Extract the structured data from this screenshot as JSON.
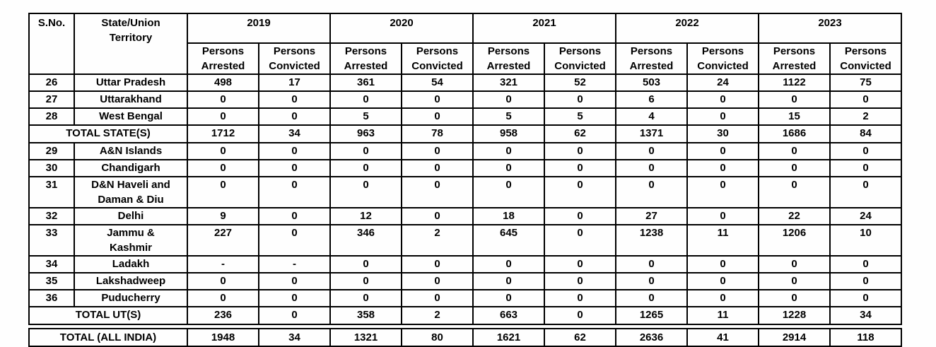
{
  "table": {
    "header": {
      "sno": "S.No.",
      "state": "State/Union\nTerritory",
      "years": [
        "2019",
        "2020",
        "2021",
        "2022",
        "2023"
      ],
      "persons_arrested": "Persons\nArrested",
      "persons_convicted": "Persons\nConvicted"
    },
    "rows": [
      {
        "type": "data",
        "sno": "26",
        "name": "Uttar Pradesh",
        "values": [
          "498",
          "17",
          "361",
          "54",
          "321",
          "52",
          "503",
          "24",
          "1122",
          "75"
        ]
      },
      {
        "type": "data",
        "sno": "27",
        "name": "Uttarakhand",
        "values": [
          "0",
          "0",
          "0",
          "0",
          "0",
          "0",
          "6",
          "0",
          "0",
          "0"
        ]
      },
      {
        "type": "data",
        "sno": "28",
        "name": "West Bengal",
        "values": [
          "0",
          "0",
          "5",
          "0",
          "5",
          "5",
          "4",
          "0",
          "15",
          "2"
        ]
      },
      {
        "type": "total",
        "name": "TOTAL STATE(S)",
        "values": [
          "1712",
          "34",
          "963",
          "78",
          "958",
          "62",
          "1371",
          "30",
          "1686",
          "84"
        ]
      },
      {
        "type": "data",
        "sno": "29",
        "name": "A&N Islands",
        "values": [
          "0",
          "0",
          "0",
          "0",
          "0",
          "0",
          "0",
          "0",
          "0",
          "0"
        ]
      },
      {
        "type": "data",
        "sno": "30",
        "name": "Chandigarh",
        "values": [
          "0",
          "0",
          "0",
          "0",
          "0",
          "0",
          "0",
          "0",
          "0",
          "0"
        ]
      },
      {
        "type": "data",
        "sno": "31",
        "name": "D&N Haveli and\nDaman & Diu",
        "values": [
          "0",
          "0",
          "0",
          "0",
          "0",
          "0",
          "0",
          "0",
          "0",
          "0"
        ]
      },
      {
        "type": "data",
        "sno": "32",
        "name": "Delhi",
        "values": [
          "9",
          "0",
          "12",
          "0",
          "18",
          "0",
          "27",
          "0",
          "22",
          "24"
        ]
      },
      {
        "type": "data",
        "sno": "33",
        "name": "Jammu &\nKashmir",
        "values": [
          "227",
          "0",
          "346",
          "2",
          "645",
          "0",
          "1238",
          "11",
          "1206",
          "10"
        ]
      },
      {
        "type": "data",
        "sno": "34",
        "name": "Ladakh",
        "values": [
          "-",
          "-",
          "0",
          "0",
          "0",
          "0",
          "0",
          "0",
          "0",
          "0"
        ]
      },
      {
        "type": "data",
        "sno": "35",
        "name": "Lakshadweep",
        "values": [
          "0",
          "0",
          "0",
          "0",
          "0",
          "0",
          "0",
          "0",
          "0",
          "0"
        ]
      },
      {
        "type": "data",
        "sno": "36",
        "name": "Puducherry",
        "values": [
          "0",
          "0",
          "0",
          "0",
          "0",
          "0",
          "0",
          "0",
          "0",
          "0"
        ]
      },
      {
        "type": "total",
        "name": "TOTAL UT(S)",
        "values": [
          "236",
          "0",
          "358",
          "2",
          "663",
          "0",
          "1265",
          "11",
          "1228",
          "34"
        ]
      }
    ],
    "all_india": {
      "name": "TOTAL (ALL INDIA)",
      "values": [
        "1948",
        "34",
        "1321",
        "80",
        "1621",
        "62",
        "2636",
        "41",
        "2914",
        "118"
      ]
    },
    "colors": {
      "border": "#000000",
      "text": "#000000",
      "background": "#fefefe"
    }
  }
}
